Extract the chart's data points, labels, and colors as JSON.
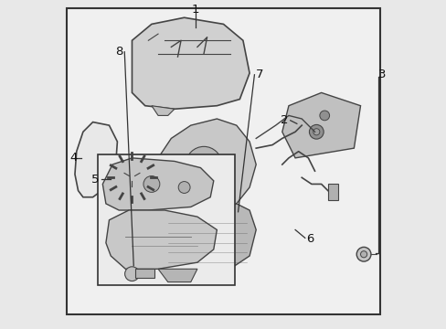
{
  "background_color": "#e8e8e8",
  "inner_bg_color": "#f0f0f0",
  "border_color": "#333333",
  "line_color": "#444444",
  "part_color": "#555555",
  "figsize": [
    4.89,
    3.6
  ],
  "dpi": 100
}
